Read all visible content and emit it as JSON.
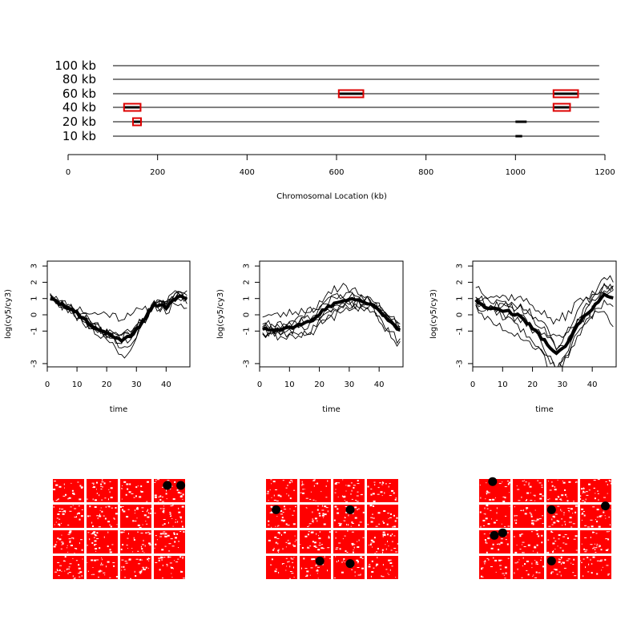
{
  "chart_data": [
    {
      "type": "track",
      "xlabel": "Chromosomal Location (kb)",
      "ylabel": "",
      "xlim": [
        0,
        1200
      ],
      "x_ticks": [
        "0",
        "200",
        "400",
        "600",
        "800",
        "1000",
        "1200"
      ],
      "track_range": [
        0,
        1180
      ],
      "tracks": [
        "100 kb",
        "80 kb",
        "60 kb",
        "40 kb",
        "20 kb",
        "10 kb"
      ],
      "segments": [
        {
          "track": "60 kb",
          "start": 605,
          "end": 660
        },
        {
          "track": "60 kb",
          "start": 1085,
          "end": 1140
        },
        {
          "track": "40 kb",
          "start": 125,
          "end": 160
        },
        {
          "track": "40 kb",
          "start": 1085,
          "end": 1120
        },
        {
          "track": "20 kb",
          "start": 145,
          "end": 165
        },
        {
          "track": "20 kb",
          "start": 1000,
          "end": 1025
        },
        {
          "track": "10 kb",
          "start": 1000,
          "end": 1015
        }
      ],
      "highlight_boxes": [
        {
          "track": "60 kb",
          "start": 605,
          "end": 660
        },
        {
          "track": "60 kb",
          "start": 1085,
          "end": 1140
        },
        {
          "track": "40 kb",
          "start": 125,
          "end": 162
        },
        {
          "track": "40 kb",
          "start": 1085,
          "end": 1122
        },
        {
          "track": "20 kb",
          "start": 145,
          "end": 163
        }
      ],
      "colors": {
        "box": "#dd0000",
        "line": "#000000"
      }
    },
    {
      "type": "line",
      "xlabel": "time",
      "ylabel": "log(cy5/cy3)",
      "xlim": [
        0,
        48
      ],
      "ylim": [
        -3.2,
        3.3
      ],
      "x_ticks": [
        "0",
        "10",
        "20",
        "30",
        "40"
      ],
      "y_ticks": [
        "-3",
        "-1",
        "0",
        "1",
        "2",
        "3"
      ],
      "mean_anchors": [
        [
          1,
          1.1
        ],
        [
          5,
          0.6
        ],
        [
          10,
          0.1
        ],
        [
          15,
          -0.7
        ],
        [
          20,
          -1.1
        ],
        [
          25,
          -1.6
        ],
        [
          28,
          -1.3
        ],
        [
          32,
          -0.5
        ],
        [
          36,
          0.6
        ],
        [
          40,
          0.5
        ],
        [
          44,
          1.1
        ],
        [
          47,
          1.0
        ]
      ],
      "series_offsets": [
        [
          [
            1,
            0
          ],
          [
            10,
            0.3
          ],
          [
            20,
            1.2
          ],
          [
            28,
            1.5
          ],
          [
            36,
            -0.1
          ],
          [
            47,
            0
          ]
        ],
        [
          [
            1,
            0.1
          ],
          [
            20,
            -0.3
          ],
          [
            27,
            -1.1
          ],
          [
            31,
            0
          ],
          [
            47,
            0.2
          ]
        ],
        [
          [
            1,
            0
          ],
          [
            15,
            0.2
          ],
          [
            25,
            -0.4
          ],
          [
            33,
            -0.2
          ],
          [
            43,
            0.6
          ],
          [
            47,
            0.2
          ]
        ],
        [
          [
            1,
            -0.1
          ],
          [
            15,
            -0.2
          ],
          [
            24,
            0.1
          ],
          [
            30,
            0.2
          ],
          [
            42,
            -0.3
          ],
          [
            47,
            -0.4
          ]
        ],
        [
          [
            1,
            0.1
          ],
          [
            12,
            0.2
          ],
          [
            24,
            0.2
          ],
          [
            34,
            0.1
          ],
          [
            47,
            0.1
          ]
        ],
        [
          [
            1,
            -0.1
          ],
          [
            15,
            0.1
          ],
          [
            27,
            -0.2
          ],
          [
            35,
            0
          ],
          [
            47,
            0.3
          ]
        ],
        [
          [
            1,
            0
          ],
          [
            14,
            -0.3
          ],
          [
            27,
            0.3
          ],
          [
            38,
            0.2
          ],
          [
            47,
            -0.1
          ]
        ]
      ]
    },
    {
      "type": "line",
      "xlabel": "time",
      "ylabel": "log(cy5/cy3)",
      "xlim": [
        0,
        48
      ],
      "ylim": [
        -3.2,
        3.3
      ],
      "x_ticks": [
        "0",
        "10",
        "20",
        "30",
        "40"
      ],
      "y_ticks": [
        "-3",
        "-1",
        "0",
        "1",
        "2",
        "3"
      ],
      "mean_anchors": [
        [
          1,
          -0.8
        ],
        [
          6,
          -0.9
        ],
        [
          12,
          -0.7
        ],
        [
          18,
          -0.3
        ],
        [
          22,
          0.4
        ],
        [
          28,
          0.9
        ],
        [
          33,
          0.9
        ],
        [
          38,
          0.6
        ],
        [
          43,
          -0.3
        ],
        [
          47,
          -1.0
        ]
      ],
      "series_offsets": [
        [
          [
            1,
            0.8
          ],
          [
            12,
            0.9
          ],
          [
            25,
            0.3
          ],
          [
            33,
            0.2
          ],
          [
            47,
            0.3
          ]
        ],
        [
          [
            1,
            -0.3
          ],
          [
            15,
            -0.6
          ],
          [
            25,
            -0.5
          ],
          [
            35,
            -0.2
          ],
          [
            47,
            -0.7
          ]
        ],
        [
          [
            1,
            0.2
          ],
          [
            12,
            -0.5
          ],
          [
            22,
            -0.8
          ],
          [
            30,
            -0.6
          ],
          [
            47,
            0.3
          ]
        ],
        [
          [
            1,
            -0.4
          ],
          [
            18,
            0.7
          ],
          [
            27,
            0.9
          ],
          [
            36,
            0.3
          ],
          [
            47,
            -0.2
          ]
        ],
        [
          [
            1,
            0.1
          ],
          [
            14,
            0.2
          ],
          [
            25,
            -0.2
          ],
          [
            37,
            -0.4
          ],
          [
            47,
            -0.9
          ]
        ],
        [
          [
            1,
            0.3
          ],
          [
            12,
            0.1
          ],
          [
            25,
            0.5
          ],
          [
            34,
            0.2
          ],
          [
            47,
            0.1
          ]
        ],
        [
          [
            1,
            -0.2
          ],
          [
            15,
            -0.2
          ],
          [
            30,
            -0.3
          ],
          [
            40,
            0.1
          ],
          [
            47,
            0.2
          ]
        ]
      ]
    },
    {
      "type": "line",
      "xlabel": "time",
      "ylabel": "log(cy5/cy3)",
      "xlim": [
        0,
        48
      ],
      "ylim": [
        -3.2,
        3.3
      ],
      "x_ticks": [
        "0",
        "10",
        "20",
        "30",
        "40"
      ],
      "y_ticks": [
        "-3",
        "-1",
        "0",
        "1",
        "2",
        "3"
      ],
      "mean_anchors": [
        [
          1,
          0.9
        ],
        [
          5,
          0.4
        ],
        [
          10,
          0.3
        ],
        [
          15,
          0
        ],
        [
          20,
          -0.8
        ],
        [
          25,
          -1.8
        ],
        [
          28,
          -2.4
        ],
        [
          31,
          -2.0
        ],
        [
          35,
          -0.6
        ],
        [
          40,
          0.4
        ],
        [
          44,
          1.2
        ],
        [
          47,
          1.0
        ]
      ],
      "series_offsets": [
        [
          [
            1,
            0.9
          ],
          [
            10,
            0.8
          ],
          [
            20,
            1.4
          ],
          [
            30,
            2.0
          ],
          [
            40,
            0.8
          ],
          [
            47,
            0.6
          ]
        ],
        [
          [
            1,
            -0.5
          ],
          [
            12,
            -1.2
          ],
          [
            22,
            -1.0
          ],
          [
            30,
            -0.9
          ],
          [
            40,
            -0.4
          ],
          [
            47,
            -1.5
          ]
        ],
        [
          [
            1,
            0.3
          ],
          [
            12,
            0.4
          ],
          [
            22,
            -0.3
          ],
          [
            28,
            -1.0
          ],
          [
            36,
            0.2
          ],
          [
            47,
            0.4
          ]
        ],
        [
          [
            1,
            -0.3
          ],
          [
            10,
            0.2
          ],
          [
            20,
            0.8
          ],
          [
            30,
            1.0
          ],
          [
            40,
            -0.5
          ],
          [
            47,
            -0.3
          ]
        ],
        [
          [
            1,
            0.4
          ],
          [
            15,
            -0.6
          ],
          [
            25,
            -1.2
          ],
          [
            35,
            -0.5
          ],
          [
            47,
            0.6
          ]
        ],
        [
          [
            1,
            -0.2
          ],
          [
            12,
            0.5
          ],
          [
            24,
            0.7
          ],
          [
            34,
            0.1
          ],
          [
            47,
            1.2
          ]
        ],
        [
          [
            1,
            0.2
          ],
          [
            10,
            -0.4
          ],
          [
            25,
            0.3
          ],
          [
            36,
            0.9
          ],
          [
            47,
            0.5
          ]
        ]
      ]
    },
    {
      "type": "scatter",
      "grid": "4x4 spotted array blocks",
      "x": [
        3.4,
        3.8
      ],
      "y": [
        0.25,
        0.25
      ],
      "colors": {
        "spot": "#ff0000",
        "highlight": "#000000"
      }
    },
    {
      "type": "scatter",
      "grid": "4x4 spotted array blocks",
      "x": [
        0.3,
        2.5,
        1.6,
        2.5
      ],
      "y": [
        1.2,
        1.2,
        3.2,
        3.3
      ],
      "colors": {
        "spot": "#ff0000",
        "highlight": "#000000"
      }
    },
    {
      "type": "scatter",
      "grid": "4x4 spotted array blocks",
      "x": [
        0.4,
        0.45,
        0.7,
        2.15,
        3.75,
        2.15
      ],
      "y": [
        0.1,
        2.2,
        2.1,
        1.2,
        1.05,
        3.2
      ],
      "colors": {
        "spot": "#ff0000",
        "highlight": "#000000"
      }
    }
  ]
}
